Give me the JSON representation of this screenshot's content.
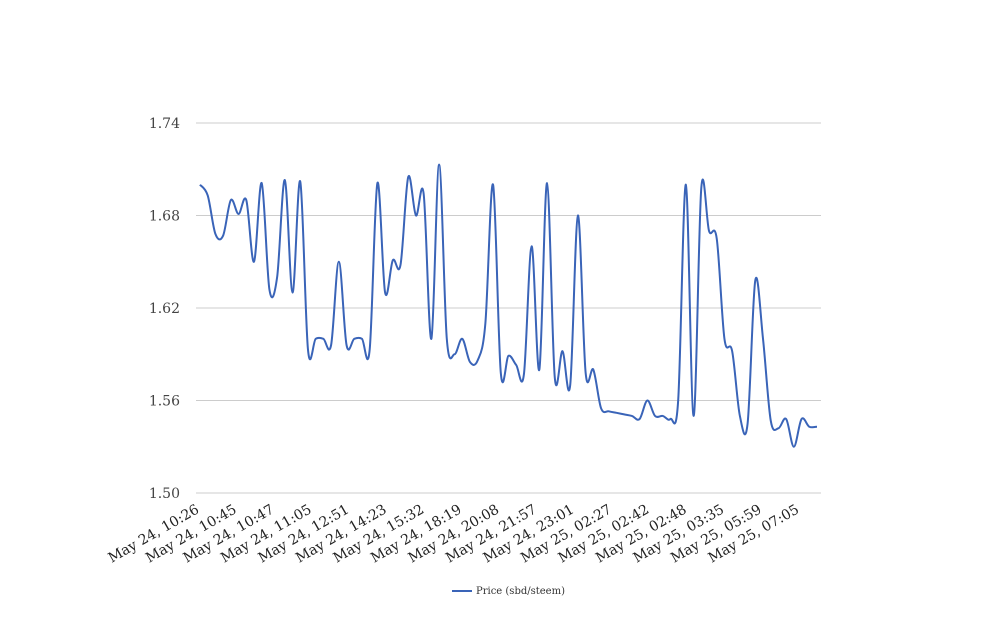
{
  "chart_data": {
    "type": "line",
    "title": "",
    "xlabel": "",
    "ylabel": "",
    "ylim": [
      1.5,
      1.74
    ],
    "yticks": [
      "1.74",
      "1.68",
      "1.62",
      "1.56",
      "1.50"
    ],
    "ytick_values": [
      1.74,
      1.68,
      1.62,
      1.56,
      1.5
    ],
    "xtick_labels": [
      "May 24, 10:26",
      "May 24, 10:45",
      "May 24, 10:47",
      "May 24, 11:05",
      "May 24, 12:51",
      "May 24, 14:23",
      "May 24, 15:32",
      "May 24, 18:19",
      "May 24, 20:08",
      "May 24, 21:57",
      "May 24, 23:01",
      "May 25, 02:27",
      "May 25, 02:42",
      "May 25, 02:48",
      "May 25, 03:35",
      "May 25, 05:59",
      "May 25, 07:05"
    ],
    "grid": true,
    "legend_position": "bottom-center",
    "series": [
      {
        "name": "Price (sbd/steem)",
        "color": "#3a64b8",
        "values": [
          1.7,
          1.693,
          1.668,
          1.667,
          1.69,
          1.681,
          1.69,
          1.65,
          1.701,
          1.632,
          1.64,
          1.703,
          1.63,
          1.702,
          1.593,
          1.6,
          1.6,
          1.596,
          1.65,
          1.596,
          1.6,
          1.6,
          1.593,
          1.701,
          1.63,
          1.651,
          1.648,
          1.705,
          1.68,
          1.694,
          1.6,
          1.713,
          1.6,
          1.59,
          1.6,
          1.585,
          1.586,
          1.61,
          1.7,
          1.578,
          1.589,
          1.583,
          1.577,
          1.66,
          1.58,
          1.701,
          1.575,
          1.592,
          1.57,
          1.68,
          1.578,
          1.58,
          1.555,
          1.553,
          1.552,
          1.551,
          1.55,
          1.548,
          1.56,
          1.55,
          1.55,
          1.548,
          1.56,
          1.7,
          1.55,
          1.698,
          1.67,
          1.665,
          1.6,
          1.592,
          1.55,
          1.545,
          1.638,
          1.6,
          1.547,
          1.542,
          1.548,
          1.53,
          1.548,
          1.543,
          1.543
        ]
      }
    ]
  }
}
